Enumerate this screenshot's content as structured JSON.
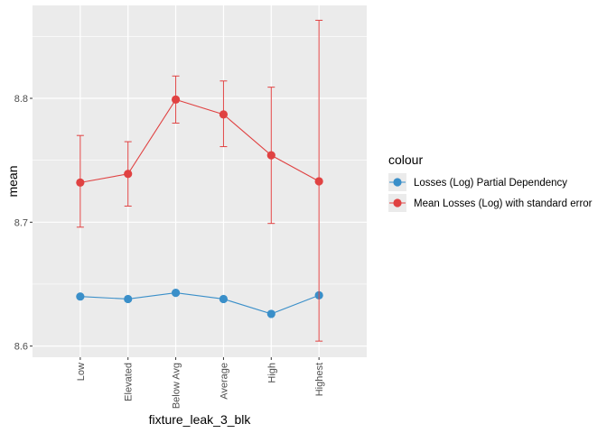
{
  "chart_data": {
    "type": "line",
    "xlabel": "fixture_leak_3_blk",
    "ylabel": "mean",
    "categories": [
      "Low",
      "Elevated",
      "Below Avg",
      "Average",
      "High",
      "Highest"
    ],
    "ylim": [
      8.591,
      8.875
    ],
    "yticks": [
      "8.6",
      "8.7",
      "8.8"
    ],
    "ytick_values": [
      8.6,
      8.7,
      8.8
    ],
    "grid": true,
    "legend": {
      "title": "colour",
      "placement": "right"
    },
    "series": [
      {
        "name": "Losses (Log) Partial Dependency",
        "color": "#3a8fc9",
        "values": [
          8.64,
          8.638,
          8.643,
          8.638,
          8.626,
          8.641
        ]
      },
      {
        "name": "Mean Losses (Log) with standard error",
        "color": "#e04242",
        "values": [
          8.732,
          8.739,
          8.799,
          8.787,
          8.754,
          8.733
        ],
        "error_low": [
          8.696,
          8.713,
          8.78,
          8.761,
          8.699,
          8.604
        ],
        "error_high": [
          8.77,
          8.765,
          8.818,
          8.814,
          8.809,
          8.863
        ]
      }
    ]
  }
}
